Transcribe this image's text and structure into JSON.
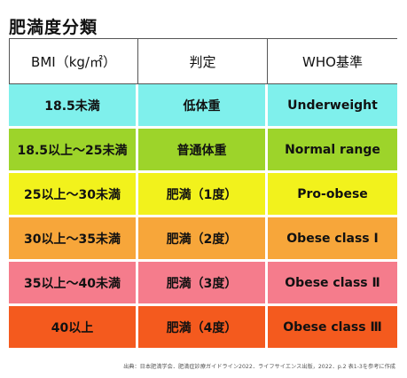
{
  "title": "肥満度分類",
  "headers": {
    "bmi": "BMI（kg/㎡）",
    "judgment": "判定",
    "who": "WHO基準"
  },
  "rows": [
    {
      "bmi": "18.5未満",
      "judgment": "低体重",
      "who": "Underweight",
      "color": "#7ff0ec"
    },
    {
      "bmi": "18.5以上～25未満",
      "judgment": "普通体重",
      "who": "Normal range",
      "color": "#9dd42a"
    },
    {
      "bmi": "25以上～30未満",
      "judgment": "肥満（1度）",
      "who": "Pro-obese",
      "color": "#f2f21c"
    },
    {
      "bmi": "30以上～35未満",
      "judgment": "肥満（2度）",
      "who": "Obese class Ⅰ",
      "color": "#f7a63a"
    },
    {
      "bmi": "35以上～40未満",
      "judgment": "肥満（3度）",
      "who": "Obese class Ⅱ",
      "color": "#f57c8c"
    },
    {
      "bmi": "40以上",
      "judgment": "肥満（4度）",
      "who": "Obese class Ⅲ",
      "color": "#f45a1e"
    }
  ],
  "source_note": "出典：日本肥満学会．肥満症診療ガイドライン2022．ライフサイエンス出版，2022．p.2 表1-3を参考に作成"
}
